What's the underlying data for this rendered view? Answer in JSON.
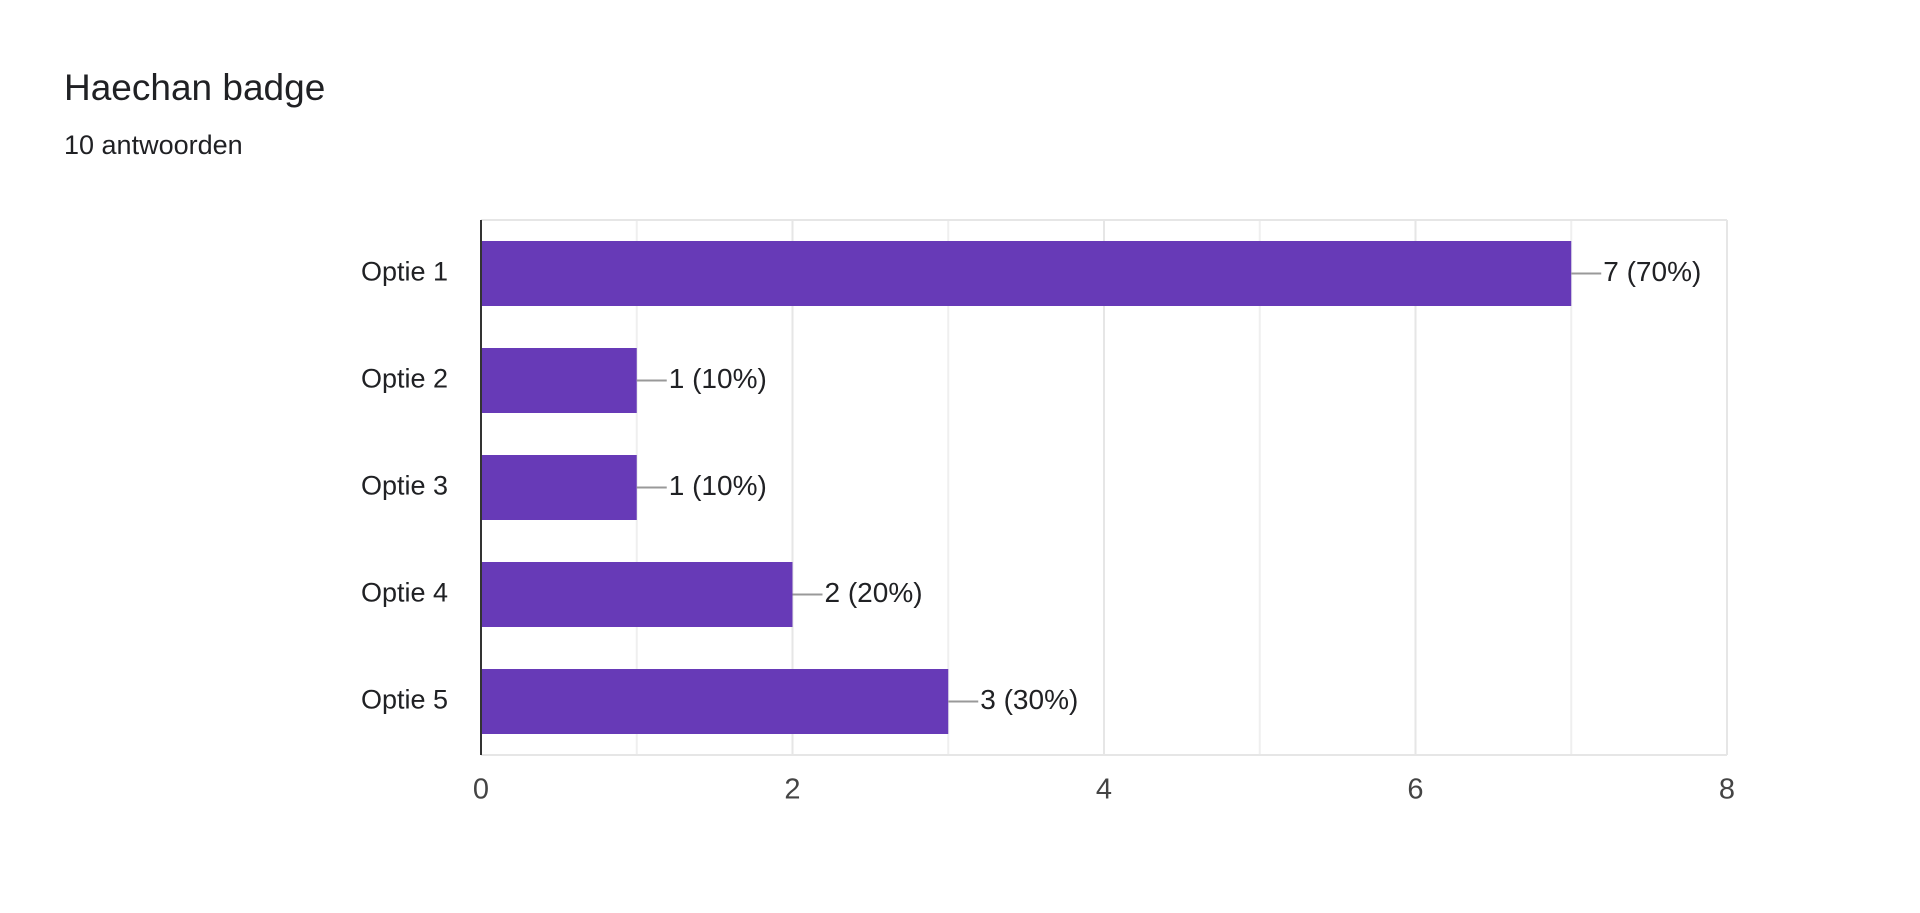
{
  "chart_data": {
    "type": "barh",
    "title": "Haechan badge",
    "subtitle": "10 antwoorden",
    "categories": [
      "Optie 1",
      "Optie 2",
      "Optie 3",
      "Optie 4",
      "Optie 5"
    ],
    "values": [
      7,
      1,
      1,
      2,
      3
    ],
    "value_labels": [
      "7 (70%)",
      "1 (10%)",
      "1 (10%)",
      "2 (20%)",
      "3 (30%)"
    ],
    "color": "#673ab7",
    "xlim": [
      0,
      8
    ],
    "xticks": [
      0,
      2,
      4,
      6,
      8
    ],
    "grid": true
  }
}
